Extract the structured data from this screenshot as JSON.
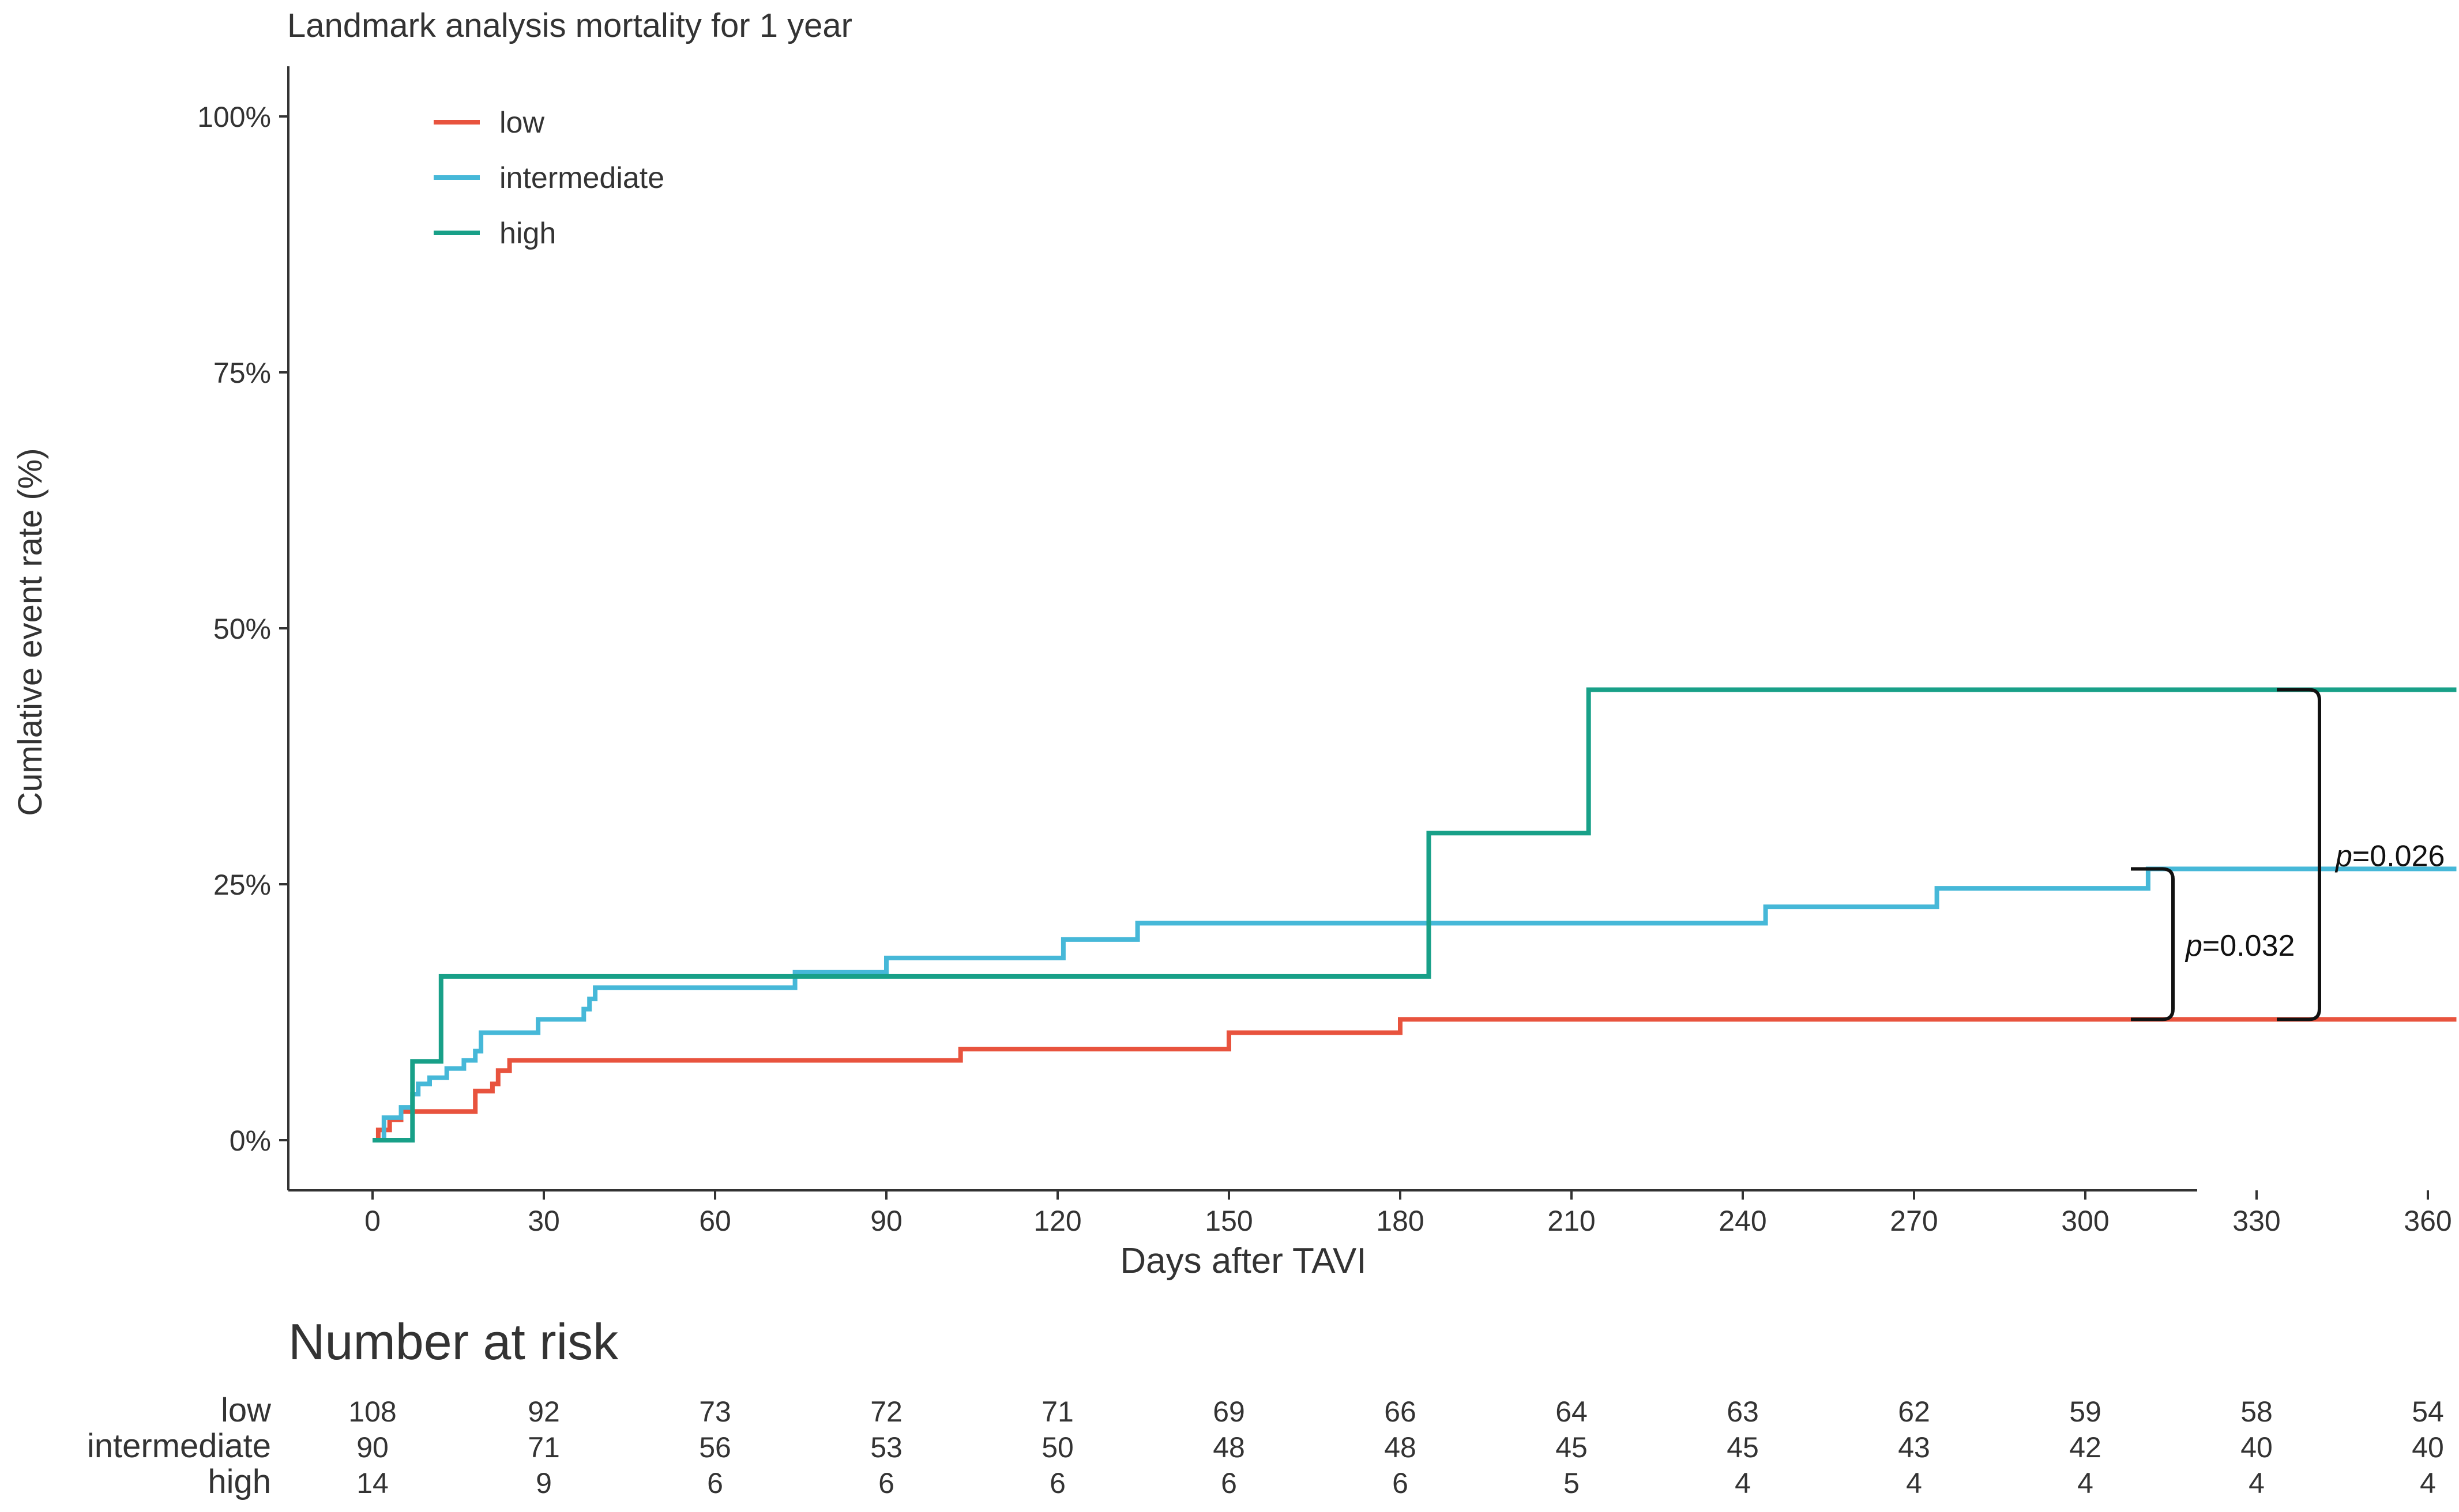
{
  "chart_data": {
    "type": "line",
    "title": "Landmark analysis mortality for 1 year",
    "xlabel": "Days after TAVI",
    "ylabel": "Cumlative event rate (%)",
    "xlim": [
      -14,
      380
    ],
    "ylim": [
      -5,
      104
    ],
    "x_ticks": [
      0,
      30,
      60,
      90,
      120,
      150,
      180,
      210,
      240,
      270,
      300,
      330,
      360
    ],
    "y_ticks": [
      0,
      25,
      50,
      75,
      100
    ],
    "y_tick_labels": [
      "0%",
      "25%",
      "50%",
      "75%",
      "100%"
    ],
    "grid": false,
    "legend_position": "top-left",
    "step": true,
    "series": [
      {
        "name": "low",
        "color": "#e8533e",
        "points": [
          [
            0,
            0
          ],
          [
            1,
            1
          ],
          [
            3,
            2
          ],
          [
            5,
            2.8
          ],
          [
            8,
            2.8
          ],
          [
            18,
            4.8
          ],
          [
            21,
            5.5
          ],
          [
            22,
            6.8
          ],
          [
            24,
            7.8
          ],
          [
            103,
            7.8
          ],
          [
            103,
            8.9
          ],
          [
            150,
            10
          ],
          [
            150,
            10.5
          ],
          [
            180,
            10.5
          ],
          [
            180,
            11.8
          ],
          [
            365,
            11.8
          ]
        ]
      },
      {
        "name": "intermediate",
        "color": "#46b8d8",
        "points": [
          [
            0,
            0
          ],
          [
            2,
            2.2
          ],
          [
            5,
            3.2
          ],
          [
            7,
            4.5
          ],
          [
            8,
            5.5
          ],
          [
            10,
            6.1
          ],
          [
            13,
            7
          ],
          [
            16,
            7.8
          ],
          [
            18,
            8.7
          ],
          [
            19,
            10.5
          ],
          [
            29,
            11.8
          ],
          [
            37,
            12.8
          ],
          [
            38,
            13.8
          ],
          [
            39,
            14.9
          ],
          [
            74,
            16.4
          ],
          [
            90,
            17.8
          ],
          [
            121,
            19.6
          ],
          [
            134,
            21.2
          ],
          [
            244,
            21.2
          ],
          [
            244,
            22.8
          ],
          [
            274,
            24.6
          ],
          [
            311,
            26.5
          ],
          [
            365,
            26.5
          ]
        ]
      },
      {
        "name": "high",
        "color": "#18a088",
        "points": [
          [
            0,
            0
          ],
          [
            7,
            0
          ],
          [
            7,
            7.7
          ],
          [
            12,
            7.7
          ],
          [
            12,
            16
          ],
          [
            185,
            16
          ],
          [
            185,
            30
          ],
          [
            213,
            30
          ],
          [
            213,
            44
          ],
          [
            365,
            44
          ]
        ]
      }
    ],
    "annotations": [
      {
        "label": "p",
        "value": "=0.032",
        "y_range": [
          11.8,
          26.5
        ],
        "level": "inner"
      },
      {
        "label": "p",
        "value": "=0.026",
        "y_range": [
          11.8,
          44
        ],
        "level": "outer"
      }
    ]
  },
  "risk_table": {
    "title": "Number at risk",
    "times": [
      0,
      30,
      60,
      90,
      120,
      150,
      180,
      210,
      240,
      270,
      300,
      330,
      360
    ],
    "rows": [
      {
        "label": "low",
        "values": [
          "108",
          "92",
          "73",
          "72",
          "71",
          "69",
          "66",
          "64",
          "63",
          "62",
          "59",
          "58",
          "54"
        ]
      },
      {
        "label": "intermediate",
        "values": [
          "90",
          "71",
          "56",
          "53",
          "50",
          "48",
          "48",
          "45",
          "45",
          "43",
          "42",
          "40",
          "40"
        ]
      },
      {
        "label": "high",
        "values": [
          "14",
          "9",
          "6",
          "6",
          "6",
          "6",
          "6",
          "5",
          "4",
          "4",
          "4",
          "4",
          "4"
        ]
      }
    ]
  }
}
